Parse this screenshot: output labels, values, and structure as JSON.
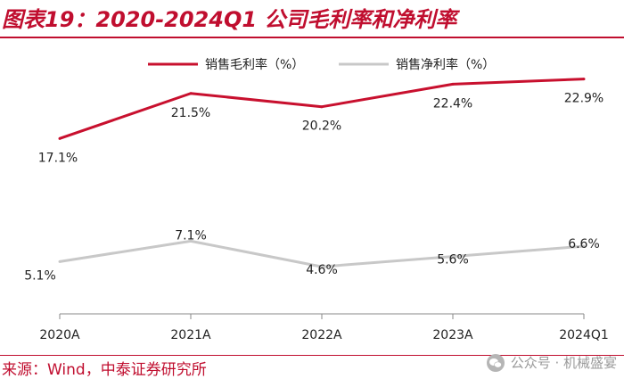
{
  "header": {
    "title": "图表19：2020-2024Q1 公司毛利率和净利率"
  },
  "footer": {
    "source": "来源：Wind，中泰证券研究所",
    "watermark": "公众号 · 机械盛宴"
  },
  "colors": {
    "accent": "#c00e2f",
    "series_gross": "#c8102e",
    "series_net": "#c8c8c8"
  },
  "chart_data": {
    "type": "line",
    "title": "2020-2024Q1 公司毛利率和净利率",
    "categories": [
      "2020A",
      "2021A",
      "2022A",
      "2023A",
      "2024Q1"
    ],
    "series": [
      {
        "name": "销售毛利率（%）",
        "values": [
          17.1,
          21.5,
          20.2,
          22.4,
          22.9
        ],
        "labels": [
          "17.1%",
          "21.5%",
          "20.2%",
          "22.4%",
          "22.9%"
        ]
      },
      {
        "name": "销售净利率（%）",
        "values": [
          5.1,
          7.1,
          4.6,
          5.6,
          6.6
        ],
        "labels": [
          "5.1%",
          "7.1%",
          "4.6%",
          "5.6%",
          "6.6%"
        ]
      }
    ],
    "ylim": [
      0,
      25
    ],
    "xlabel": "",
    "ylabel": "",
    "grid": false,
    "legend": "top"
  }
}
